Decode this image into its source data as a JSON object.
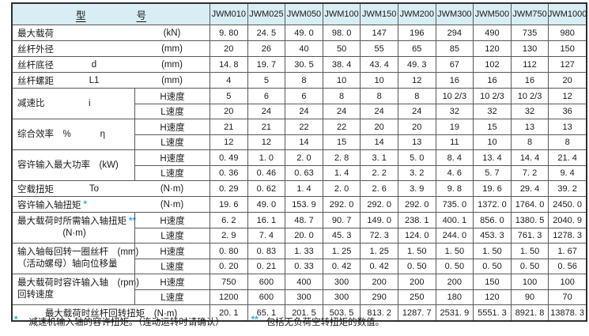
{
  "header": {
    "col_label_1": "型",
    "col_label_2": "号",
    "models": [
      "JWM010",
      "JWM025",
      "JWM050",
      "JWM100",
      "JWM150",
      "JWM200",
      "JWM300",
      "JWM500",
      "JWM750",
      "JWM1000"
    ]
  },
  "speed_labels": {
    "h": "H速度",
    "l": "L速度"
  },
  "rows": [
    {
      "kind": "simple",
      "label": "最大载荷",
      "symbol": "",
      "unit": "(kN)",
      "star": "",
      "values": [
        "9. 80",
        "24. 5",
        "49. 0",
        "98. 0",
        "147",
        "196",
        "294",
        "490",
        "735",
        "980"
      ]
    },
    {
      "kind": "simple",
      "label": "丝杆外径",
      "symbol": "",
      "unit": "(mm)",
      "star": "",
      "values": [
        "20",
        "26",
        "40",
        "50",
        "55",
        "65",
        "85",
        "120",
        "130",
        "150"
      ]
    },
    {
      "kind": "simple",
      "label": "丝杆底径",
      "symbol": "d",
      "unit": "(mm)",
      "star": "",
      "values": [
        "14. 8",
        "19. 7",
        "30. 5",
        "38. 4",
        "43. 4",
        "49. 3",
        "67",
        "102",
        "112",
        "127"
      ]
    },
    {
      "kind": "simple",
      "label": "丝杆螺距",
      "symbol": "L1",
      "unit": "(mm)",
      "star": "",
      "values": [
        "4",
        "5",
        "8",
        "10",
        "10",
        "12",
        "16",
        "16",
        "16",
        "20"
      ]
    },
    {
      "kind": "dual",
      "label": "减速比",
      "symbol": "i",
      "label2": "",
      "star": "",
      "h": [
        "5",
        "6",
        "6",
        "8",
        "8",
        "8",
        "10 2/3",
        "10 2/3",
        "10 2/3",
        "12"
      ],
      "l": [
        "20",
        "24",
        "24",
        "24",
        "24",
        "24",
        "32",
        "32",
        "32",
        "36"
      ]
    },
    {
      "kind": "dual",
      "label": "综合效率　%",
      "symbol": "η",
      "label2": "",
      "star": "",
      "h": [
        "21",
        "21",
        "22",
        "22",
        "20",
        "20",
        "19",
        "15",
        "13",
        "13"
      ],
      "l": [
        "12",
        "12",
        "14",
        "15",
        "14",
        "13",
        "11",
        "10",
        "8",
        "8"
      ]
    },
    {
      "kind": "dual",
      "label": "容许输入最大功率　(kW)",
      "symbol": "",
      "label2": "",
      "star": "",
      "h": [
        "0. 49",
        "1. 0",
        "2. 0",
        "2. 8",
        "3. 1",
        "5. 0",
        "8. 4",
        "13. 4",
        "14. 4",
        "21. 4"
      ],
      "l": [
        "0. 36",
        "0. 46",
        "0. 63",
        "1. 4",
        "2. 2",
        "3. 2",
        "4. 6",
        "5. 7",
        "7. 2",
        "9. 4"
      ]
    },
    {
      "kind": "simple",
      "label": "空载扭矩",
      "symbol": "To",
      "unit": "(N·m)",
      "star": "",
      "values": [
        "0. 29",
        "0. 62",
        "1. 4",
        "2. 0",
        "2. 6",
        "3. 9",
        "9. 8",
        "19. 6",
        "29. 4",
        "39. 2"
      ]
    },
    {
      "kind": "simple",
      "label": "容许输入轴扭矩",
      "symbol": "",
      "unit": "(N·m)",
      "star": "*",
      "values": [
        "19. 6",
        "49. 0",
        "153. 9",
        "292. 0",
        "292. 0",
        "292. 0",
        "735. 0",
        "1372. 0",
        "1764. 0",
        "2450. 0"
      ]
    },
    {
      "kind": "dual",
      "label": "最大载荷时所需输入轴扭矩",
      "symbol": "",
      "star": "**",
      "label2": "(N·m)",
      "label2_align": "center",
      "h": [
        "6. 2",
        "16. 1",
        "48. 7",
        "90. 7",
        "149. 0",
        "238. 1",
        "400. 1",
        "856. 0",
        "1380. 5",
        "2040. 9"
      ],
      "l": [
        "2. 9",
        "7. 4",
        "20. 0",
        "45. 3",
        "72. 3",
        "124. 0",
        "244. 0",
        "453. 3",
        "761. 3",
        "1278. 3"
      ]
    },
    {
      "kind": "dual",
      "label": "输入轴每回转一圈丝杆　(mm)",
      "symbol": "",
      "star": "",
      "label2": "（活动螺母）轴向位移量",
      "h": [
        "0. 80",
        "0. 83",
        "1. 33",
        "1. 25",
        "1. 25",
        "1. 50",
        "1. 50",
        "1. 50",
        "1. 50",
        "1. 67"
      ],
      "l": [
        "0. 20",
        "0. 21",
        "0. 33",
        "0. 42",
        "0. 42",
        "0. 50",
        "0. 50",
        "0. 50",
        "0. 50",
        "0. 56"
      ]
    },
    {
      "kind": "dual",
      "label": "最大载荷时容许输入轴　(rpm)",
      "symbol": "",
      "star": "",
      "label2": "回转速度",
      "h": [
        "750",
        "600",
        "400",
        "300",
        "200",
        "200",
        "200",
        "150",
        "100",
        "100"
      ],
      "l": [
        "1200",
        "600",
        "300",
        "300",
        "290",
        "250",
        "180",
        "120",
        "90",
        "70"
      ]
    },
    {
      "kind": "span",
      "label": "最大载荷时丝杆回转扭矩　(N·m)",
      "star": "",
      "values": [
        "20. 1",
        "65. 1",
        "201. 5",
        "503. 5",
        "813. 2",
        "1287. 7",
        "2531. 9",
        "5551. 3",
        "8921. 8",
        "13878. 3"
      ]
    }
  ],
  "footnotes": {
    "marker1": "*",
    "note1": "减速机输入轴的容许扭矩。（连动运转时请确认）",
    "marker2": "**",
    "note2": "包括无负荷空转扭矩的数值。"
  },
  "colors": {
    "header_bg": "#d8edf4",
    "accent_star": "#29abe2",
    "grid_line": "#595959",
    "outer_border": "#2f2f2f"
  }
}
